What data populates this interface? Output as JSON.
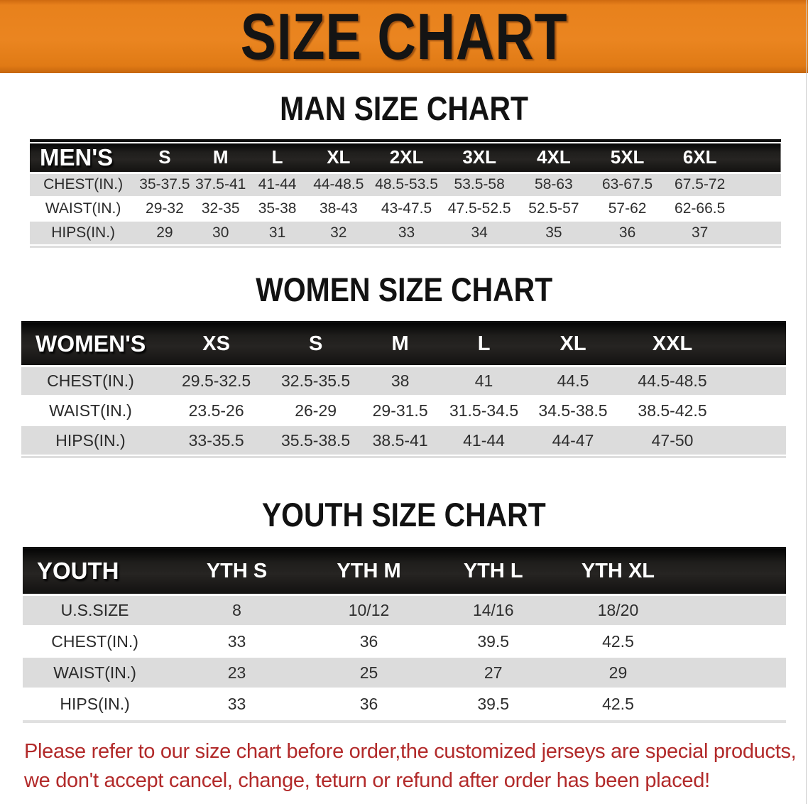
{
  "banner": {
    "title": "SIZE CHART"
  },
  "colors": {
    "banner_orange": "#E8811C",
    "header_bar_black": "#141414",
    "row_shade_gray": "#DCDCDC",
    "disclaimer_red": "#B22A2A"
  },
  "sections": [
    {
      "heading": "MAN SIZE CHART",
      "table": {
        "header_label": "MEN'S",
        "columns": [
          "S",
          "M",
          "L",
          "XL",
          "2XL",
          "3XL",
          "4XL",
          "5XL",
          "6XL"
        ],
        "rows": [
          {
            "label": "CHEST(IN.)",
            "values": [
              "35-37.5",
              "37.5-41",
              "41-44",
              "44-48.5",
              "48.5-53.5",
              "53.5-58",
              "58-63",
              "63-67.5",
              "67.5-72"
            ]
          },
          {
            "label": "WAIST(IN.)",
            "values": [
              "29-32",
              "32-35",
              "35-38",
              "38-43",
              "43-47.5",
              "47.5-52.5",
              "52.5-57",
              "57-62",
              "62-66.5"
            ]
          },
          {
            "label": "HIPS(IN.)",
            "values": [
              "29",
              "30",
              "31",
              "32",
              "33",
              "34",
              "35",
              "36",
              "37"
            ]
          }
        ]
      }
    },
    {
      "heading": "WOMEN SIZE CHART",
      "table": {
        "header_label": "WOMEN'S",
        "columns": [
          "XS",
          "S",
          "M",
          "L",
          "XL",
          "XXL"
        ],
        "rows": [
          {
            "label": "CHEST(IN.)",
            "values": [
              "29.5-32.5",
              "32.5-35.5",
              "38",
              "41",
              "44.5",
              "44.5-48.5"
            ]
          },
          {
            "label": "WAIST(IN.)",
            "values": [
              "23.5-26",
              "26-29",
              "29-31.5",
              "31.5-34.5",
              "34.5-38.5",
              "38.5-42.5"
            ]
          },
          {
            "label": "HIPS(IN.)",
            "values": [
              "33-35.5",
              "35.5-38.5",
              "38.5-41",
              "41-44",
              "44-47",
              "47-50"
            ]
          }
        ]
      }
    },
    {
      "heading": "YOUTH SIZE CHART",
      "table": {
        "header_label": "YOUTH",
        "columns": [
          "YTH S",
          "YTH M",
          "YTH L",
          "YTH XL"
        ],
        "rows": [
          {
            "label": "U.S.SIZE",
            "values": [
              "8",
              "10/12",
              "14/16",
              "18/20"
            ]
          },
          {
            "label": "CHEST(IN.)",
            "values": [
              "33",
              "36",
              "39.5",
              "42.5"
            ]
          },
          {
            "label": "WAIST(IN.)",
            "values": [
              "23",
              "25",
              "27",
              "29"
            ]
          },
          {
            "label": "HIPS(IN.)",
            "values": [
              "33",
              "36",
              "39.5",
              "42.5"
            ]
          }
        ]
      }
    }
  ],
  "disclaimer": {
    "line1": "Please refer to our size chart before order,the customized jerseys are special products,",
    "line2": "we don't accept cancel, change, teturn or refund after order has been placed!"
  }
}
